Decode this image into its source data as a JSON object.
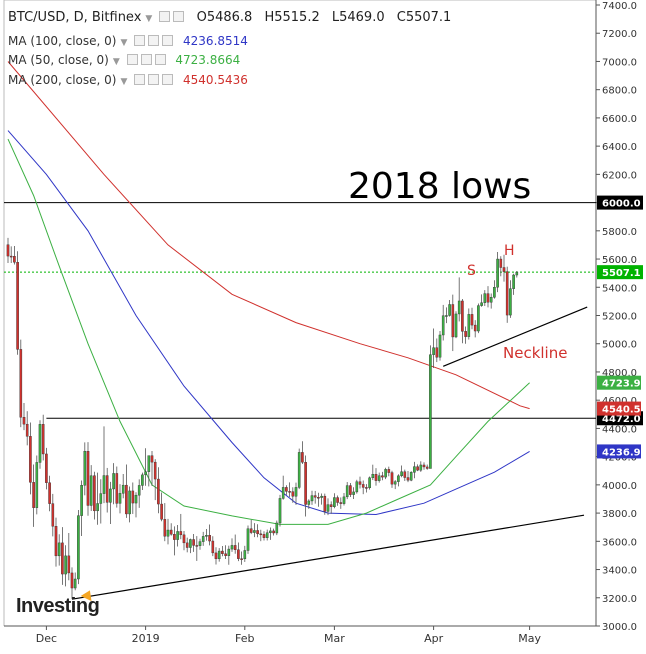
{
  "header": {
    "symbol": "BTC/USD, D, Bitfinex",
    "open": "O5486.8",
    "high": "H5515.2",
    "low": "L5469.0",
    "close": "C5507.1"
  },
  "indicators": [
    {
      "label": "MA (100, close, 0)",
      "value": "4236.8514",
      "color": "#2f36c6"
    },
    {
      "label": "MA (50, close, 0)",
      "value": "4723.8664",
      "color": "#3cb043"
    },
    {
      "label": "MA (200, close, 0)",
      "value": "4540.5436",
      "color": "#d0312d"
    }
  ],
  "logo": "Investing",
  "annotations": {
    "lows_title": "2018 lows",
    "s_label": "S",
    "h_label": "H",
    "neckline_label": "Neckline"
  },
  "chart_data": {
    "type": "candlestick",
    "ylim": [
      3000,
      7400
    ],
    "y_ticks": [
      3000,
      3200,
      3400,
      3600,
      3800,
      4000,
      4200,
      4400,
      4600,
      4800,
      5000,
      5200,
      5400,
      5600,
      5800,
      6000,
      6200,
      6400,
      6600,
      6800,
      7000,
      7200,
      7400
    ],
    "x_labels": [
      {
        "label": "Dec",
        "bar": 12
      },
      {
        "label": "2019",
        "bar": 43
      },
      {
        "label": "Feb",
        "bar": 74
      },
      {
        "label": "Mar",
        "bar": 102
      },
      {
        "label": "Apr",
        "bar": 133
      },
      {
        "label": "May",
        "bar": 163
      }
    ],
    "candles": [
      [
        5701,
        5750,
        5572,
        5621
      ],
      [
        5621,
        5690,
        5572,
        5620
      ],
      [
        5620,
        5692,
        5561,
        5577
      ],
      [
        5577,
        5655,
        4922,
        4960
      ],
      [
        4960,
        5029,
        4409,
        4479
      ],
      [
        4479,
        4580,
        4388,
        4430
      ],
      [
        4430,
        4522,
        4280,
        4344
      ],
      [
        4344,
        4442,
        3933,
        4018
      ],
      [
        4018,
        4144,
        3702,
        3838
      ],
      [
        3838,
        4208,
        3791,
        4159
      ],
      [
        4159,
        4458,
        4114,
        4429
      ],
      [
        4429,
        4497,
        4173,
        4219
      ],
      [
        4219,
        4262,
        3968,
        4015
      ],
      [
        4015,
        4065,
        3813,
        3867
      ],
      [
        3867,
        3936,
        3635,
        3707
      ],
      [
        3707,
        3768,
        3421,
        3497
      ],
      [
        3497,
        3650,
        3428,
        3589
      ],
      [
        3589,
        3701,
        3291,
        3368
      ],
      [
        3368,
        3572,
        3281,
        3497
      ],
      [
        3497,
        3659,
        3324,
        3376
      ],
      [
        3376,
        3415,
        3192,
        3269
      ],
      [
        3269,
        3379,
        3253,
        3333
      ],
      [
        3333,
        3822,
        3297,
        3782
      ],
      [
        3782,
        4031,
        3638,
        3997
      ],
      [
        3997,
        4301,
        3926,
        4238
      ],
      [
        4238,
        4303,
        3781,
        3854
      ],
      [
        3854,
        4140,
        3815,
        4065
      ],
      [
        4065,
        4093,
        3755,
        3816
      ],
      [
        3816,
        4087,
        3717,
        3868
      ],
      [
        3868,
        4040,
        3726,
        3938
      ],
      [
        3938,
        4414,
        3871,
        4066
      ],
      [
        4066,
        4120,
        3804,
        3876
      ],
      [
        3876,
        4021,
        3723,
        3971
      ],
      [
        3971,
        4154,
        3863,
        4081
      ],
      [
        4081,
        4130,
        3839,
        3869
      ],
      [
        3869,
        4005,
        3798,
        3940
      ],
      [
        3940,
        4077,
        3905,
        3998
      ],
      [
        3998,
        4144,
        3766,
        3794
      ],
      [
        3794,
        3988,
        3734,
        3957
      ],
      [
        3957,
        4017,
        3794,
        3871
      ],
      [
        3871,
        3948,
        3770,
        3927
      ],
      [
        3927,
        4039,
        3837,
        3996
      ],
      [
        3996,
        4087,
        3964,
        4071
      ],
      [
        4071,
        4259,
        3994,
        4093
      ],
      [
        4093,
        4206,
        3989,
        4207
      ],
      [
        4207,
        4240,
        3993,
        4161
      ],
      [
        4161,
        4182,
        3892,
        4041
      ],
      [
        4041,
        4125,
        3799,
        3864
      ],
      [
        3864,
        3946,
        3742,
        3756
      ],
      [
        3756,
        3871,
        3601,
        3636
      ],
      [
        3636,
        3759,
        3578,
        3680
      ],
      [
        3680,
        3728,
        3640,
        3650
      ],
      [
        3650,
        3706,
        3500,
        3612
      ],
      [
        3612,
        3716,
        3563,
        3670
      ],
      [
        3670,
        3794,
        3615,
        3646
      ],
      [
        3646,
        3673,
        3537,
        3589
      ],
      [
        3589,
        3626,
        3522,
        3556
      ],
      [
        3556,
        3619,
        3516,
        3613
      ],
      [
        3613,
        3652,
        3525,
        3571
      ],
      [
        3571,
        3637,
        3461,
        3569
      ],
      [
        3569,
        3618,
        3540,
        3598
      ],
      [
        3598,
        3667,
        3568,
        3635
      ],
      [
        3635,
        3687,
        3605,
        3643
      ],
      [
        3643,
        3719,
        3571,
        3602
      ],
      [
        3602,
        3636,
        3495,
        3518
      ],
      [
        3518,
        3558,
        3436,
        3476
      ],
      [
        3476,
        3552,
        3456,
        3531
      ],
      [
        3531,
        3567,
        3494,
        3512
      ],
      [
        3512,
        3572,
        3475,
        3498
      ],
      [
        3498,
        3569,
        3434,
        3545
      ],
      [
        3545,
        3621,
        3525,
        3571
      ],
      [
        3571,
        3648,
        3512,
        3540
      ],
      [
        3540,
        3592,
        3460,
        3477
      ],
      [
        3477,
        3528,
        3434,
        3476
      ],
      [
        3476,
        3568,
        3454,
        3535
      ],
      [
        3535,
        3712,
        3511,
        3689
      ],
      [
        3689,
        3752,
        3651,
        3662
      ],
      [
        3662,
        3729,
        3630,
        3677
      ],
      [
        3677,
        3721,
        3629,
        3653
      ],
      [
        3653,
        3682,
        3601,
        3649
      ],
      [
        3649,
        3671,
        3606,
        3625
      ],
      [
        3625,
        3683,
        3606,
        3661
      ],
      [
        3661,
        3698,
        3610,
        3674
      ],
      [
        3674,
        3690,
        3641,
        3659
      ],
      [
        3659,
        3747,
        3644,
        3730
      ],
      [
        3730,
        3929,
        3705,
        3904
      ],
      [
        3904,
        4065,
        3895,
        3982
      ],
      [
        3982,
        3997,
        3929,
        3954
      ],
      [
        3954,
        4018,
        3914,
        3952
      ],
      [
        3952,
        3983,
        3873,
        3919
      ],
      [
        3919,
        4016,
        3858,
        3982
      ],
      [
        3982,
        4257,
        3970,
        4230
      ],
      [
        4230,
        4309,
        4148,
        4160
      ],
      [
        4160,
        4208,
        3776,
        3861
      ],
      [
        3861,
        3898,
        3830,
        3886
      ],
      [
        3886,
        3958,
        3858,
        3924
      ],
      [
        3924,
        3957,
        3867,
        3912
      ],
      [
        3912,
        3944,
        3845,
        3910
      ],
      [
        3910,
        3939,
        3860,
        3920
      ],
      [
        3920,
        3938,
        3788,
        3812
      ],
      [
        3812,
        3904,
        3786,
        3860
      ],
      [
        3860,
        3883,
        3795,
        3845
      ],
      [
        3845,
        3941,
        3834,
        3910
      ],
      [
        3910,
        3925,
        3852,
        3875
      ],
      [
        3875,
        3911,
        3830,
        3867
      ],
      [
        3867,
        3942,
        3854,
        3915
      ],
      [
        3915,
        4020,
        3899,
        3995
      ],
      [
        3995,
        4013,
        3914,
        3931
      ],
      [
        3931,
        3983,
        3900,
        3950
      ],
      [
        3950,
        4036,
        3938,
        4022
      ],
      [
        4022,
        4058,
        3974,
        4003
      ],
      [
        4003,
        4031,
        3934,
        3982
      ],
      [
        3982,
        4005,
        3946,
        3979
      ],
      [
        3979,
        4059,
        3966,
        4050
      ],
      [
        4050,
        4143,
        4034,
        4075
      ],
      [
        4075,
        4119,
        3995,
        4030
      ],
      [
        4030,
        4087,
        4016,
        4065
      ],
      [
        4065,
        4092,
        4033,
        4055
      ],
      [
        4055,
        4121,
        4041,
        4110
      ],
      [
        4110,
        4129,
        4061,
        4087
      ],
      [
        4087,
        4100,
        3979,
        4005
      ],
      [
        4005,
        4034,
        3970,
        4023
      ],
      [
        4023,
        4075,
        3989,
        4064
      ],
      [
        4064,
        4137,
        4054,
        4093
      ],
      [
        4093,
        4108,
        4028,
        4052
      ],
      [
        4052,
        4098,
        4019,
        4033
      ],
      [
        4033,
        4097,
        4026,
        4089
      ],
      [
        4089,
        4163,
        4047,
        4129
      ],
      [
        4129,
        4145,
        4097,
        4104
      ],
      [
        4104,
        4167,
        4092,
        4141
      ],
      [
        4141,
        4159,
        4107,
        4127
      ],
      [
        4127,
        4144,
        4107,
        4116
      ],
      [
        4116,
        4988,
        4116,
        4922
      ],
      [
        4922,
        5108,
        4828,
        4972
      ],
      [
        4972,
        5037,
        4870,
        4904
      ],
      [
        4904,
        5090,
        4880,
        5062
      ],
      [
        5062,
        5275,
        5023,
        5198
      ],
      [
        5198,
        5258,
        5146,
        5200
      ],
      [
        5200,
        5310,
        5192,
        5278
      ],
      [
        5278,
        5348,
        4948,
        5048
      ],
      [
        5048,
        5230,
        5040,
        5211
      ],
      [
        5211,
        5470,
        5158,
        5303
      ],
      [
        5303,
        5317,
        5003,
        5088
      ],
      [
        5088,
        5122,
        5000,
        5050
      ],
      [
        5050,
        5250,
        5030,
        5208
      ],
      [
        5208,
        5255,
        5103,
        5132
      ],
      [
        5132,
        5167,
        5045,
        5090
      ],
      [
        5090,
        5285,
        5075,
        5270
      ],
      [
        5270,
        5350,
        5262,
        5290
      ],
      [
        5290,
        5380,
        5267,
        5355
      ],
      [
        5355,
        5408,
        5258,
        5294
      ],
      [
        5294,
        5356,
        5249,
        5329
      ],
      [
        5329,
        5450,
        5320,
        5400
      ],
      [
        5400,
        5650,
        5366,
        5600
      ],
      [
        5600,
        5620,
        5478,
        5540
      ],
      [
        5540,
        5630,
        5440,
        5511
      ],
      [
        5511,
        5546,
        5148,
        5203
      ],
      [
        5203,
        5450,
        5183,
        5390
      ],
      [
        5390,
        5496,
        5346,
        5487
      ],
      [
        5486.8,
        5515.2,
        5469.0,
        5507.1
      ]
    ],
    "moving_averages": [
      {
        "name": "MA 200",
        "color": "#d0312d",
        "points": [
          [
            0,
            7000
          ],
          [
            30,
            6200
          ],
          [
            50,
            5700
          ],
          [
            70,
            5350
          ],
          [
            90,
            5150
          ],
          [
            110,
            5000
          ],
          [
            125,
            4900
          ],
          [
            140,
            4780
          ],
          [
            160,
            4560
          ],
          [
            163,
            4540.5
          ]
        ]
      },
      {
        "name": "MA 100",
        "color": "#2f36c6",
        "points": [
          [
            0,
            6510
          ],
          [
            12,
            6200
          ],
          [
            25,
            5800
          ],
          [
            40,
            5200
          ],
          [
            55,
            4700
          ],
          [
            70,
            4300
          ],
          [
            80,
            4050
          ],
          [
            90,
            3870
          ],
          [
            100,
            3800
          ],
          [
            115,
            3790
          ],
          [
            130,
            3870
          ],
          [
            140,
            3970
          ],
          [
            152,
            4090
          ],
          [
            163,
            4236.9
          ]
        ]
      },
      {
        "name": "MA 50",
        "color": "#3cb043",
        "points": [
          [
            0,
            6450
          ],
          [
            8,
            6050
          ],
          [
            16,
            5550
          ],
          [
            25,
            5000
          ],
          [
            35,
            4450
          ],
          [
            45,
            4000
          ],
          [
            55,
            3850
          ],
          [
            70,
            3780
          ],
          [
            85,
            3720
          ],
          [
            100,
            3720
          ],
          [
            112,
            3800
          ],
          [
            122,
            3900
          ],
          [
            132,
            4000
          ],
          [
            140,
            4200
          ],
          [
            150,
            4450
          ],
          [
            163,
            4723.9
          ]
        ]
      }
    ],
    "horizontal_lines": [
      {
        "value": 6000,
        "label": "6000.0",
        "color": "#000000",
        "style": "solid"
      },
      {
        "value": 4472,
        "label": "4472.0",
        "color": "#000000",
        "style": "solid"
      },
      {
        "value": 5507.1,
        "label": "5507.1",
        "color": "#00b300",
        "style": "dotted"
      }
    ],
    "price_tags": [
      {
        "value": 4723.9,
        "label": "4723.9",
        "color": "#3cb043"
      },
      {
        "value": 4540.5,
        "label": "4540.5",
        "color": "#d0312d"
      },
      {
        "value": 4236.9,
        "label": "4236.9",
        "color": "#2f36c6"
      }
    ],
    "trendlines": [
      {
        "name": "support",
        "from": [
          20,
          3190
        ],
        "to": [
          180,
          3785
        ]
      },
      {
        "name": "neckline",
        "from": [
          136,
          4840
        ],
        "to": [
          181,
          5260
        ]
      }
    ],
    "colors": {
      "up": "#3cb043",
      "down": "#d0312d",
      "wick": "#555555",
      "grid": "#e8e8e8"
    }
  }
}
